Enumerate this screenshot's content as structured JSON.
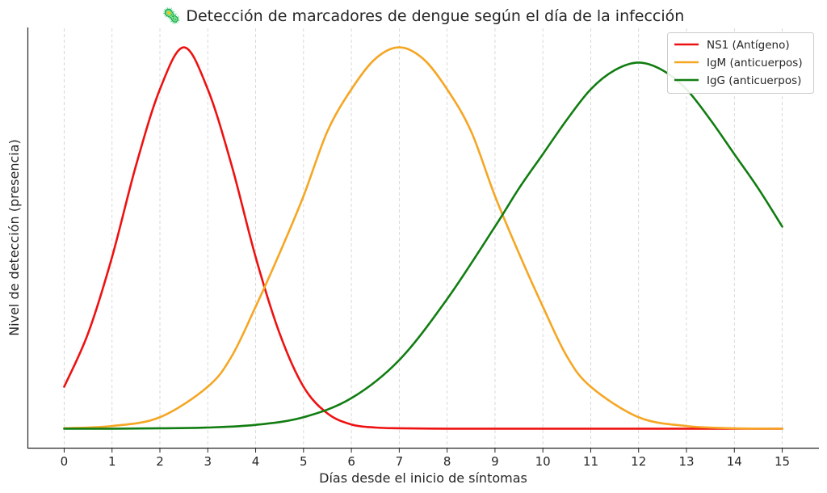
{
  "chart_data": {
    "type": "line",
    "title": "🦠 Detección de marcadores de dengue según el día de la infección",
    "xlabel": "Días desde el inicio de síntomas",
    "ylabel": "Nivel de detección (presencia)",
    "xlim": [
      -0.75,
      15.75
    ],
    "ylim": [
      -0.05,
      1.05
    ],
    "xticks": [
      "0",
      "1",
      "2",
      "3",
      "4",
      "5",
      "6",
      "7",
      "8",
      "9",
      "10",
      "11",
      "12",
      "13",
      "14",
      "15"
    ],
    "yticks_shown": false,
    "grid": "vertical-dashed",
    "legend_position": "top-right",
    "series": [
      {
        "name": "NS1 (Antígeno)",
        "color": "#ee1111",
        "x": [
          0,
          0.5,
          1,
          1.5,
          2,
          2.5,
          3,
          3.5,
          4,
          4.5,
          5,
          5.5,
          6,
          6.5,
          7,
          8,
          9,
          10,
          11,
          12,
          13,
          14,
          15
        ],
        "y": [
          0.11,
          0.25,
          0.45,
          0.69,
          0.89,
          1.0,
          0.89,
          0.69,
          0.45,
          0.25,
          0.11,
          0.04,
          0.011,
          0.003,
          0.001,
          0,
          0,
          0,
          0,
          0,
          0,
          0,
          0
        ]
      },
      {
        "name": "IgM (anticuerpos)",
        "color": "#f5a623",
        "x": [
          0,
          1,
          2,
          3,
          3.5,
          4,
          4.5,
          5,
          5.5,
          6,
          6.5,
          7,
          7.5,
          8,
          8.5,
          9,
          9.5,
          10,
          10.5,
          11,
          12,
          13,
          14,
          15
        ],
        "y": [
          0.001,
          0.007,
          0.03,
          0.11,
          0.19,
          0.32,
          0.46,
          0.61,
          0.78,
          0.89,
          0.97,
          1.0,
          0.97,
          0.89,
          0.78,
          0.61,
          0.46,
          0.32,
          0.19,
          0.11,
          0.03,
          0.007,
          0.001,
          0.0
        ]
      },
      {
        "name": "IgG (anticuerpos)",
        "color": "#117d11",
        "x": [
          0,
          1,
          2,
          3,
          4,
          5,
          6,
          7,
          8,
          9,
          9.5,
          10,
          10.5,
          11,
          11.5,
          12,
          12.5,
          13,
          13.5,
          14,
          14.5,
          15
        ],
        "y": [
          0.0,
          0.0,
          0.001,
          0.003,
          0.01,
          0.03,
          0.08,
          0.18,
          0.34,
          0.53,
          0.63,
          0.72,
          0.81,
          0.89,
          0.94,
          0.96,
          0.94,
          0.89,
          0.81,
          0.72,
          0.63,
          0.53
        ]
      }
    ]
  }
}
